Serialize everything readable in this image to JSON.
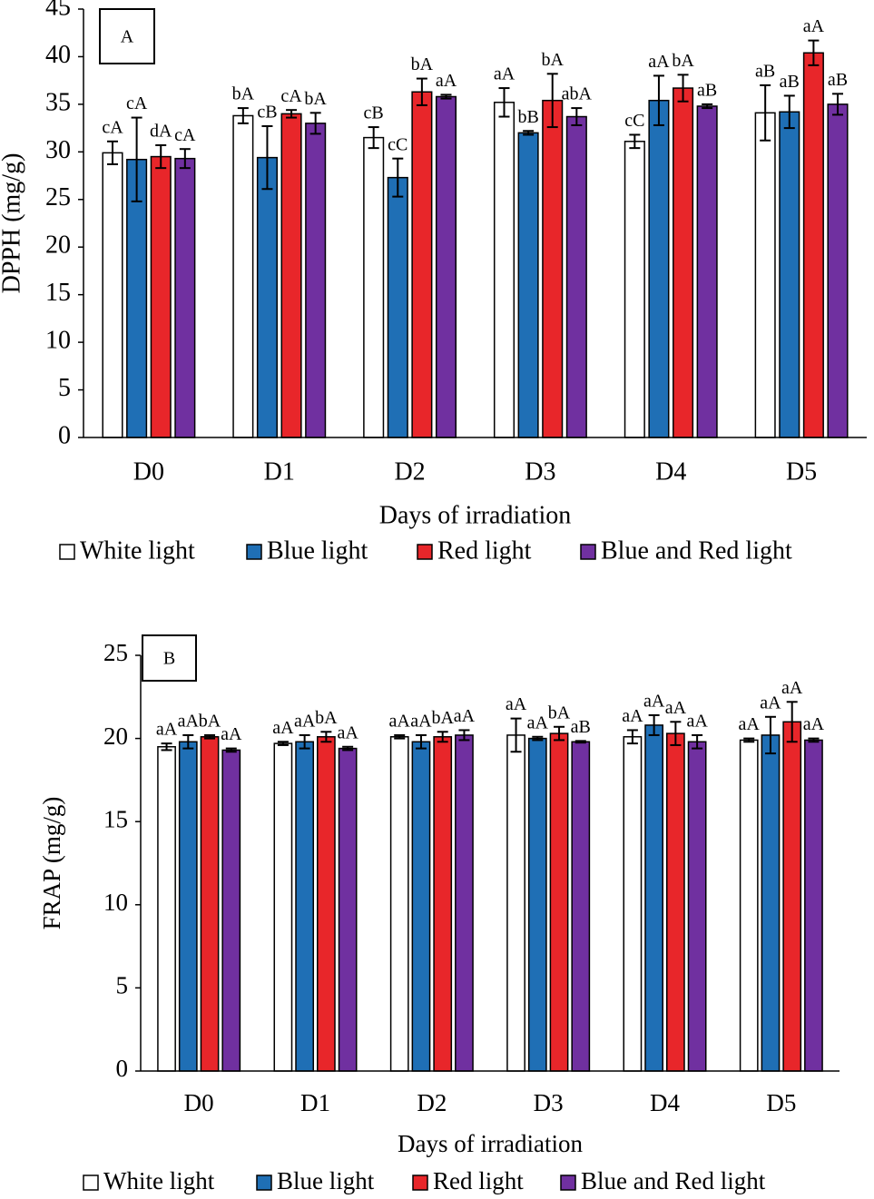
{
  "chart_data": [
    {
      "type": "bar",
      "panel_label": "A",
      "xlabel": "Days of irradiation",
      "ylabel": "DPPH (mg/g)",
      "categories": [
        "D0",
        "D1",
        "D2",
        "D3",
        "D4",
        "D5"
      ],
      "ylim": [
        0,
        45
      ],
      "yticks": [
        0,
        5,
        10,
        15,
        20,
        25,
        30,
        35,
        40,
        45
      ],
      "series": [
        {
          "name": "White light",
          "color": "#ffffff",
          "values": [
            29.9,
            33.8,
            31.5,
            35.2,
            31.1,
            34.1
          ],
          "errors": [
            1.2,
            0.8,
            1.1,
            1.5,
            0.7,
            2.9
          ],
          "letters": [
            "cA",
            "bA",
            "cB",
            "aA",
            "cC",
            "aB"
          ]
        },
        {
          "name": "Blue light",
          "color": "#1f6fb5",
          "values": [
            29.2,
            29.4,
            27.3,
            32.0,
            35.4,
            34.2
          ],
          "errors": [
            4.4,
            3.3,
            2.0,
            0.2,
            2.6,
            1.7
          ],
          "letters": [
            "cA",
            "cB",
            "cC",
            "bB",
            "aA",
            "aB"
          ]
        },
        {
          "name": "Red light",
          "color": "#e8262a",
          "values": [
            29.5,
            34.0,
            36.3,
            35.4,
            36.7,
            40.4
          ],
          "errors": [
            1.2,
            0.4,
            1.4,
            2.8,
            1.4,
            1.3
          ],
          "letters": [
            "dA",
            "cA",
            "bA",
            "bA",
            "bA",
            "aA"
          ]
        },
        {
          "name": "Blue and Red light",
          "color": "#7030a0",
          "values": [
            29.3,
            33.0,
            35.8,
            33.7,
            34.8,
            35.0
          ],
          "errors": [
            1.0,
            1.1,
            0.2,
            0.9,
            0.2,
            1.1
          ],
          "letters": [
            "cA",
            "bA",
            "aA",
            "abA",
            "aB",
            "aB"
          ]
        }
      ]
    },
    {
      "type": "bar",
      "panel_label": "B",
      "xlabel": "Days of irradiation",
      "ylabel": "FRAP (mg/g)",
      "categories": [
        "D0",
        "D1",
        "D2",
        "D3",
        "D4",
        "D5"
      ],
      "ylim": [
        0,
        25
      ],
      "yticks": [
        0,
        5,
        10,
        15,
        20,
        25
      ],
      "series": [
        {
          "name": "White light",
          "color": "#ffffff",
          "values": [
            19.5,
            19.7,
            20.1,
            20.2,
            20.1,
            19.9
          ],
          "errors": [
            0.2,
            0.1,
            0.1,
            1.0,
            0.4,
            0.1
          ],
          "letters": [
            "aA",
            "aA",
            "aA",
            "aA",
            "aA",
            "aA"
          ]
        },
        {
          "name": "Blue light",
          "color": "#1f6fb5",
          "values": [
            19.8,
            19.8,
            19.8,
            20.0,
            20.8,
            20.2
          ],
          "errors": [
            0.4,
            0.4,
            0.4,
            0.1,
            0.6,
            1.1
          ],
          "letters": [
            "aA",
            "aA",
            "aA",
            "aA",
            "aA",
            "aA"
          ]
        },
        {
          "name": "Red light",
          "color": "#e8262a",
          "values": [
            20.1,
            20.1,
            20.1,
            20.3,
            20.3,
            21.0
          ],
          "errors": [
            0.1,
            0.3,
            0.3,
            0.4,
            0.7,
            1.2
          ],
          "letters": [
            "bA",
            "bA",
            "bA",
            "bA",
            "aA",
            "aA"
          ]
        },
        {
          "name": "Blue and Red light",
          "color": "#7030a0",
          "values": [
            19.3,
            19.4,
            20.2,
            19.8,
            19.8,
            19.9
          ],
          "errors": [
            0.1,
            0.1,
            0.3,
            0.05,
            0.4,
            0.1
          ],
          "letters": [
            "aA",
            "aA",
            "aA",
            "aB",
            "aA",
            "aA"
          ]
        }
      ]
    }
  ]
}
